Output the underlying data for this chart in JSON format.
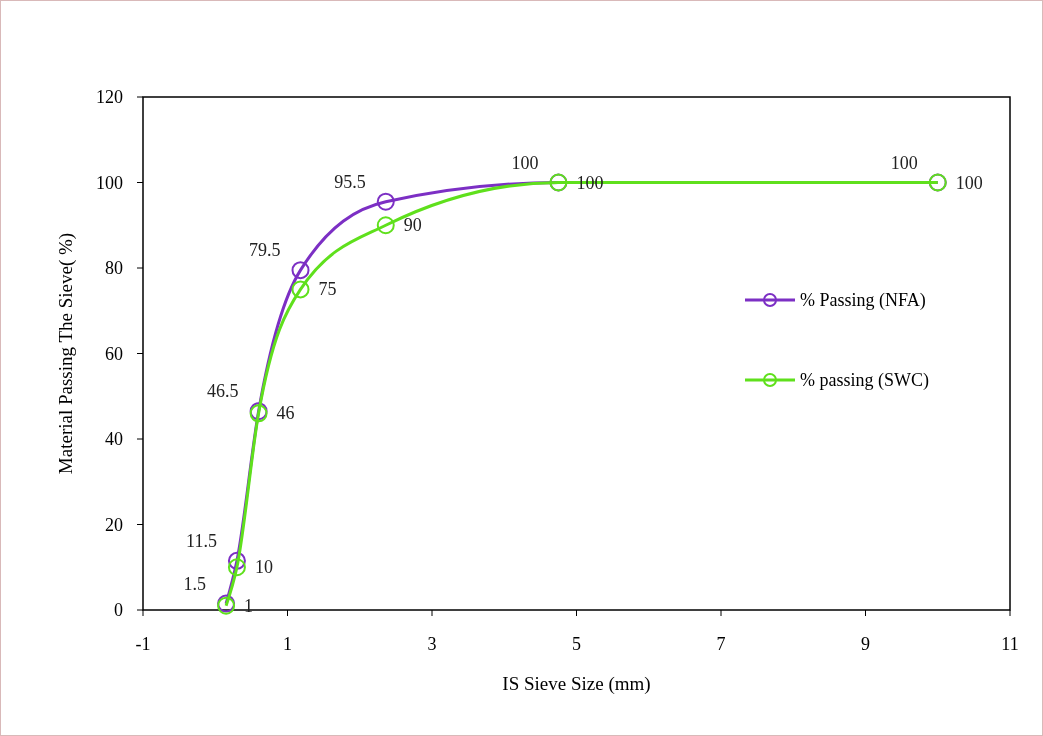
{
  "chart_data": {
    "type": "line",
    "xlabel": "IS Sieve Size (mm)",
    "ylabel": "Material Passing The Sieve( %)",
    "x": [
      0.15,
      0.3,
      0.6,
      1.18,
      2.36,
      4.75,
      10
    ],
    "series": [
      {
        "name": "% Passing (NFA)",
        "color": "#7c2fc4",
        "values": [
          1.5,
          11.5,
          46.5,
          79.5,
          95.5,
          100,
          100
        ]
      },
      {
        "name": "% passing (SWC)",
        "color": "#5fe01c",
        "values": [
          1,
          10,
          46,
          75,
          90,
          100,
          100
        ]
      }
    ],
    "xlim": [
      -1,
      11
    ],
    "xticks": [
      -1,
      1,
      3,
      5,
      7,
      9,
      11
    ],
    "ylim": [
      0,
      120
    ],
    "yticks": [
      0,
      20,
      40,
      60,
      80,
      100,
      120
    ],
    "grid": false,
    "legend": "right",
    "marker": "circle",
    "line_style": "solid",
    "data_labels": true
  }
}
